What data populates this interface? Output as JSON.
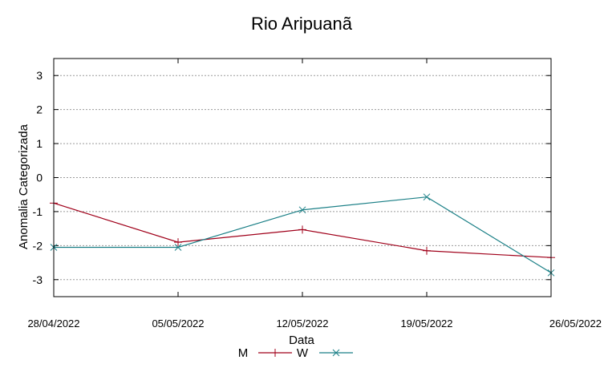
{
  "chart_data": {
    "type": "line",
    "title": "Rio Aripuanã",
    "xlabel": "Data",
    "ylabel": "Anomalia Categorizada",
    "categories": [
      "28/04/2022",
      "05/05/2022",
      "12/05/2022",
      "19/05/2022",
      "26/05/2022"
    ],
    "yticks": [
      "3",
      "2",
      "1",
      "0",
      "-1",
      "-2",
      "-3"
    ],
    "ytick_values": [
      3,
      2,
      1,
      0,
      -1,
      -2,
      -3
    ],
    "ylim": [
      -3.5,
      3.5
    ],
    "grid": true,
    "legend_position": "bottom-center",
    "series": [
      {
        "name": "M",
        "color": "#a0001a",
        "marker": "plus",
        "values": [
          -0.75,
          -1.9,
          -1.53,
          -2.15,
          -2.35
        ]
      },
      {
        "name": "W",
        "color": "#1a7f86",
        "marker": "cross",
        "values": [
          -2.05,
          -2.05,
          -0.95,
          -0.57,
          -2.8
        ]
      }
    ]
  }
}
